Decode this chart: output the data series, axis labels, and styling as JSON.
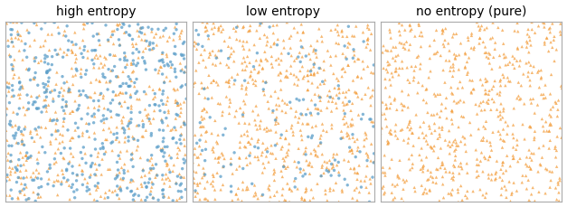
{
  "titles": [
    "high entropy",
    "low entropy",
    "no entropy (pure)"
  ],
  "n_high_orange": 500,
  "n_high_blue": 500,
  "n_low_orange": 700,
  "n_low_blue": 120,
  "n_pure": 700,
  "color_orange": "#f4a143",
  "color_blue": "#5b9ec9",
  "marker_circle": "o",
  "marker_triangle": "^",
  "marker_size": 6,
  "alpha": 0.75,
  "seed": 42,
  "figsize": [
    6.27,
    2.3
  ],
  "dpi": 100,
  "title_fontsize": 10,
  "spine_color": "#aaaaaa",
  "spine_linewidth": 0.8
}
